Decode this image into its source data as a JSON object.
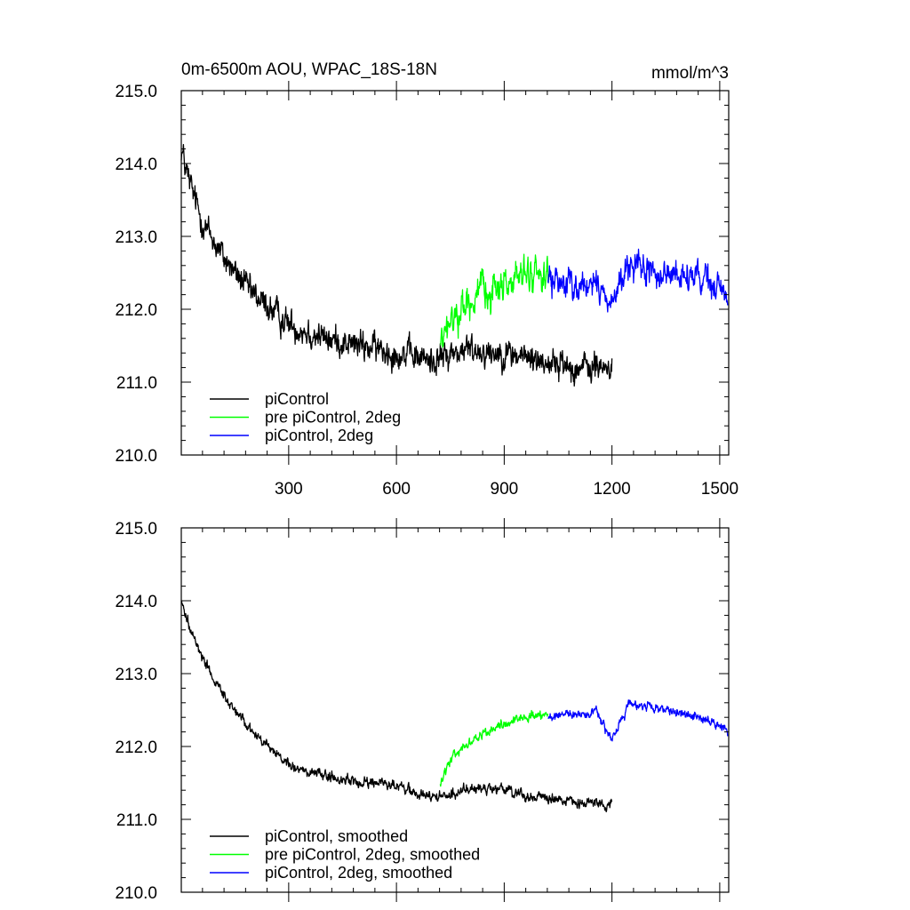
{
  "chart_data": [
    {
      "type": "line",
      "title": "0m-6500m AOU, WPAC_18S-18N",
      "units": "mmol/m^3",
      "xlim": [
        1,
        1525
      ],
      "ylim": [
        210.0,
        215.0
      ],
      "x_ticks": [
        300,
        600,
        900,
        1200,
        1500
      ],
      "x_tick_labels": [
        "300",
        "600",
        "900",
        "1200",
        "1500"
      ],
      "y_ticks": [
        210.0,
        211.0,
        212.0,
        213.0,
        214.0,
        215.0
      ],
      "y_tick_labels": [
        "210.0",
        "211.0",
        "212.0",
        "213.0",
        "214.0",
        "215.0"
      ],
      "legend_position": "bottom-left",
      "series": [
        {
          "name": "piControl",
          "color": "#000000",
          "x_range": [
            1,
            1200
          ],
          "noise": 0.28,
          "anchors": [
            [
              1,
              214.2
            ],
            [
              20,
              213.8
            ],
            [
              60,
              213.2
            ],
            [
              120,
              212.7
            ],
            [
              200,
              212.2
            ],
            [
              300,
              211.8
            ],
            [
              400,
              211.6
            ],
            [
              500,
              211.5
            ],
            [
              600,
              211.4
            ],
            [
              700,
              211.3
            ],
            [
              800,
              211.45
            ],
            [
              900,
              211.4
            ],
            [
              1000,
              211.3
            ],
            [
              1100,
              211.2
            ],
            [
              1200,
              211.2
            ]
          ]
        },
        {
          "name": "pre piControl, 2deg",
          "color": "#00ff00",
          "x_range": [
            722,
            1022
          ],
          "noise": 0.32,
          "anchors": [
            [
              722,
              211.5
            ],
            [
              760,
              211.9
            ],
            [
              800,
              212.1
            ],
            [
              850,
              212.25
            ],
            [
              900,
              212.35
            ],
            [
              950,
              212.45
            ],
            [
              1022,
              212.5
            ]
          ]
        },
        {
          "name": "piControl, 2deg",
          "color": "#0000ff",
          "x_range": [
            1022,
            1522
          ],
          "noise": 0.28,
          "anchors": [
            [
              1022,
              212.4
            ],
            [
              1100,
              212.35
            ],
            [
              1160,
              212.3
            ],
            [
              1200,
              212.1
            ],
            [
              1250,
              212.6
            ],
            [
              1300,
              212.5
            ],
            [
              1400,
              212.45
            ],
            [
              1450,
              212.4
            ],
            [
              1522,
              212.2
            ]
          ]
        }
      ]
    },
    {
      "type": "line",
      "xlim": [
        1,
        1525
      ],
      "ylim": [
        210.0,
        215.0
      ],
      "x_ticks": [
        300,
        600,
        900,
        1200,
        1500
      ],
      "y_ticks": [
        210.0,
        211.0,
        212.0,
        213.0,
        214.0,
        215.0
      ],
      "y_tick_labels": [
        "210.0",
        "211.0",
        "212.0",
        "213.0",
        "214.0",
        "215.0"
      ],
      "legend_position": "bottom-left",
      "series": [
        {
          "name": "piControl, smoothed",
          "color": "#000000",
          "x_range": [
            1,
            1200
          ],
          "noise": 0.1,
          "anchors": [
            [
              1,
              214.0
            ],
            [
              20,
              213.7
            ],
            [
              60,
              213.2
            ],
            [
              120,
              212.7
            ],
            [
              200,
              212.2
            ],
            [
              300,
              211.75
            ],
            [
              400,
              211.6
            ],
            [
              500,
              211.5
            ],
            [
              600,
              211.45
            ],
            [
              700,
              211.3
            ],
            [
              800,
              211.4
            ],
            [
              900,
              211.4
            ],
            [
              1000,
              211.3
            ],
            [
              1100,
              211.25
            ],
            [
              1200,
              211.2
            ]
          ]
        },
        {
          "name": "pre piControl, 2deg, smoothed",
          "color": "#00ff00",
          "x_range": [
            722,
            1022
          ],
          "noise": 0.09,
          "anchors": [
            [
              722,
              211.5
            ],
            [
              760,
              211.9
            ],
            [
              800,
              212.05
            ],
            [
              850,
              212.2
            ],
            [
              900,
              212.3
            ],
            [
              950,
              212.4
            ],
            [
              1022,
              212.45
            ]
          ]
        },
        {
          "name": "piControl, 2deg, smoothed",
          "color": "#0000ff",
          "x_range": [
            1022,
            1522
          ],
          "noise": 0.09,
          "anchors": [
            [
              1022,
              212.4
            ],
            [
              1100,
              212.45
            ],
            [
              1160,
              212.45
            ],
            [
              1200,
              212.1
            ],
            [
              1250,
              212.6
            ],
            [
              1300,
              212.55
            ],
            [
              1400,
              212.45
            ],
            [
              1450,
              212.4
            ],
            [
              1522,
              212.2
            ]
          ]
        }
      ]
    }
  ]
}
